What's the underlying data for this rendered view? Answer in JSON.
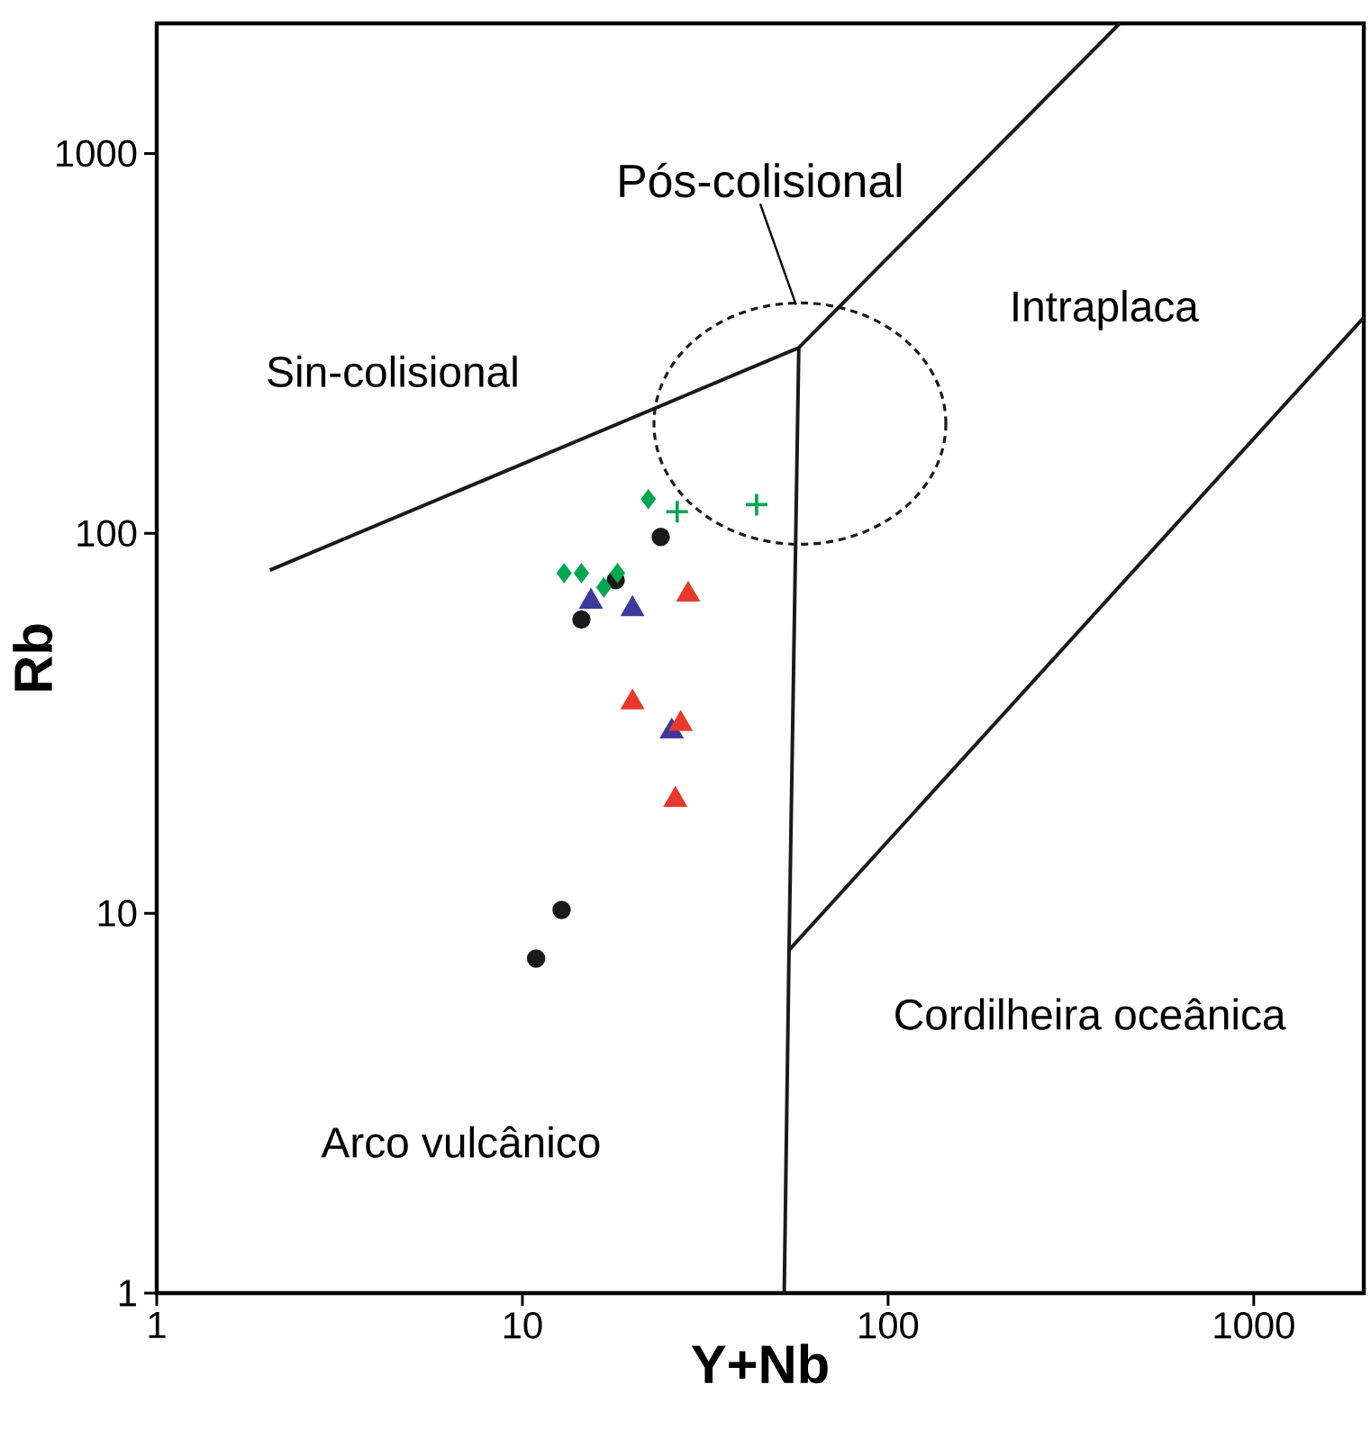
{
  "chart_data": {
    "type": "scatter",
    "xlabel": "Y+Nb",
    "ylabel": "Rb",
    "log": "xy",
    "grid": false,
    "xlim": [
      1,
      2000
    ],
    "ylim": [
      1,
      2200
    ],
    "xticks": [
      1,
      10,
      100,
      1000
    ],
    "yticks": [
      1,
      10,
      100,
      1000
    ],
    "annotations": [
      "Sin-colisional",
      "Intraplaca",
      "Cordilheira oceânica",
      "Arco vulcânico",
      "Pós-colisional"
    ],
    "series": [
      {
        "type": "line",
        "color": "#1a1a1a",
        "marker": "none",
        "line_style": "solid",
        "x": [
          2.04,
          57,
          430
        ],
        "values": [
          80,
          308,
          2200
        ]
      },
      {
        "type": "line",
        "color": "#1a1a1a",
        "marker": "none",
        "line_style": "solid",
        "x": [
          57,
          53.6,
          52
        ],
        "values": [
          308,
          8,
          1
        ]
      },
      {
        "type": "line",
        "color": "#1a1a1a",
        "marker": "none",
        "line_style": "solid",
        "x": [
          53.6,
          2000
        ],
        "values": [
          8,
          370
        ]
      },
      {
        "color": "#00a651",
        "marker": "cross",
        "x": [
          26.5,
          43.7
        ],
        "values": [
          114,
          119
        ]
      },
      {
        "color": "#1a1a1a",
        "marker": "circle",
        "x": [
          23.9,
          18.0,
          14.5,
          12.8,
          10.9
        ],
        "values": [
          97.9,
          75.3,
          59.3,
          10.2,
          7.6
        ]
      },
      {
        "color": "#00a651",
        "marker": "diamond",
        "x": [
          22.1,
          13.0,
          14.5,
          16.7,
          18.2
        ],
        "values": [
          123,
          78.6,
          78.6,
          72.1,
          78.6
        ]
      },
      {
        "color": "#3b3b9e",
        "marker": "triangle",
        "x": [
          15.4,
          20.0,
          25.6
        ],
        "values": [
          66.1,
          63.2,
          30.1
        ]
      },
      {
        "color": "#e8392e",
        "marker": "triangle",
        "x": [
          28.4,
          20.0,
          27.1,
          26.2
        ],
        "values": [
          69.0,
          35.9,
          31.5,
          19.9
        ]
      }
    ]
  }
}
